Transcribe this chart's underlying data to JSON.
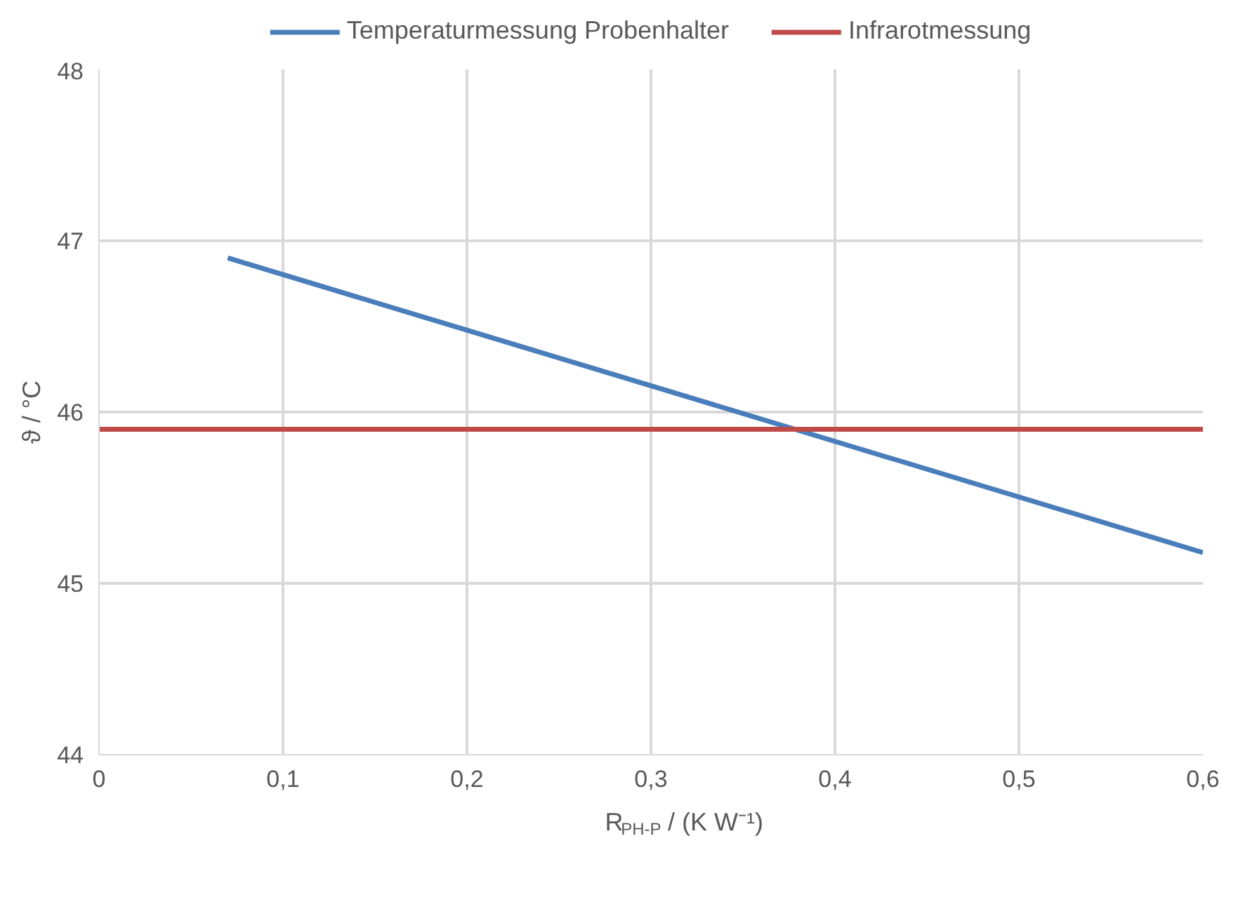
{
  "chart_data": {
    "type": "line",
    "xlabel": "R$_{PH-P}$ / (K W⁻¹)",
    "ylabel": "ϑ / °C",
    "xlim": [
      0,
      0.6
    ],
    "ylim": [
      44,
      48
    ],
    "xticks": [
      0,
      {
        "value": 0.1,
        "label": "0,1"
      },
      {
        "value": 0.2,
        "label": "0,2"
      },
      {
        "value": 0.3,
        "label": "0,3"
      },
      {
        "value": 0.4,
        "label": "0,4"
      },
      {
        "value": 0.5,
        "label": "0,5"
      },
      {
        "value": 0.6,
        "label": "0,6"
      }
    ],
    "yticks": [
      44,
      45,
      46,
      47,
      48
    ],
    "grid": true,
    "legend": "top",
    "marker": "none",
    "line_style": "solid",
    "series": [
      {
        "name": "Temperaturmessung Probenhalter",
        "color": "#4a7ebb",
        "x": [
          0.07,
          0.6
        ],
        "values": [
          46.9,
          45.18
        ]
      },
      {
        "name": "Infrarotmessung",
        "color": "#be4b48",
        "x": [
          0,
          0.6
        ],
        "values": [
          45.9,
          45.9
        ]
      }
    ]
  }
}
